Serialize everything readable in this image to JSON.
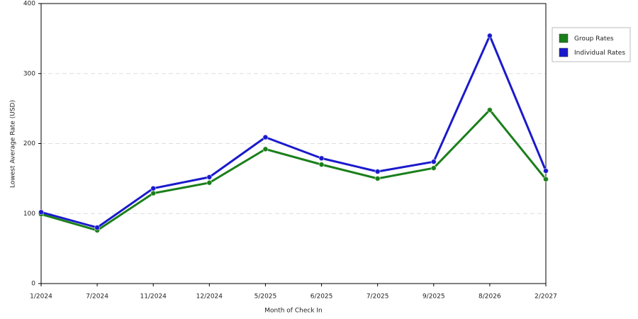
{
  "chart_data": {
    "type": "line",
    "x_label": "Month of Check In",
    "y_label": "Lowest Average Rate (USD)",
    "categories": [
      "1/2024",
      "7/2024",
      "11/2024",
      "12/2024",
      "5/2025",
      "6/2025",
      "7/2025",
      "9/2025",
      "8/2026",
      "2/2027"
    ],
    "series": [
      {
        "name": "Group Rates",
        "color": "#1a7f1a",
        "values": [
          99,
          76,
          129,
          144,
          192,
          170,
          150,
          165,
          248,
          149
        ]
      },
      {
        "name": "Individual Rates",
        "color": "#1a1acc",
        "values": [
          102,
          80,
          136,
          152,
          209,
          179,
          160,
          174,
          354,
          161
        ]
      }
    ],
    "ylim": [
      0,
      400
    ],
    "yticks": [
      0,
      100,
      200,
      300,
      400
    ],
    "grid": true,
    "legend": "right"
  }
}
